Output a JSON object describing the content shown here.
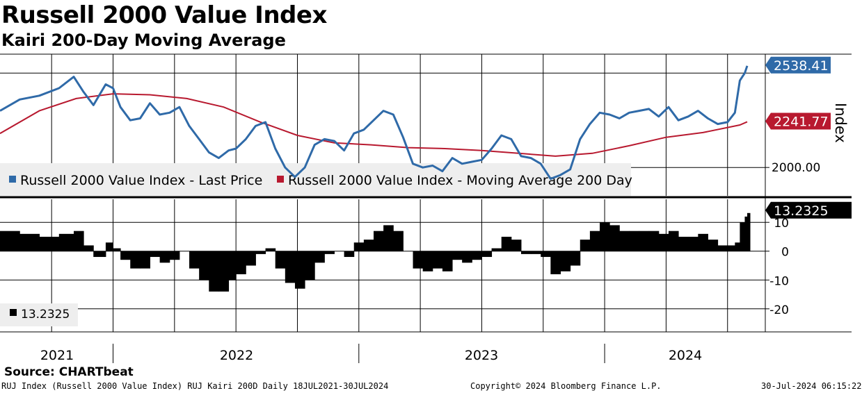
{
  "header": {
    "title": "Russell 2000 Value Index",
    "subtitle": "Kairi 200-Day Moving Average",
    "source": "Source: CHARTbeat"
  },
  "footer": {
    "left": "RUJ Index (Russell 2000 Value Index) RUJ Kairi 200D  Daily 18JUL2021-30JUL2024",
    "center": "Copyright© 2024 Bloomberg Finance L.P.",
    "right": "30-Jul-2024 06:15:22"
  },
  "colors": {
    "price": "#2f6aa8",
    "ma": "#b8192f",
    "kairi": "#000000"
  },
  "chart_data": [
    {
      "type": "line",
      "title": "Russell 2000 Value Index",
      "ylabel": "Index",
      "ylim": [
        1850,
        2600
      ],
      "y_ticks": [
        2000
      ],
      "y_tick_labels": [
        "2000.00"
      ],
      "xlim": [
        2021.54,
        2024.58
      ],
      "x_tick_labels": [
        "2021",
        "2022",
        "2023",
        "2024"
      ],
      "legend": [
        "Russell 2000 Value Index - Last Price",
        "Russell 2000 Value Index - Moving Average 200 Day"
      ],
      "series": [
        {
          "name": "Russell 2000 Value Index - Last Price",
          "last_label": "2538.41",
          "x": [
            2021.54,
            2021.62,
            2021.7,
            2021.78,
            2021.84,
            2021.88,
            2021.92,
            2021.97,
            2022.0,
            2022.03,
            2022.07,
            2022.11,
            2022.15,
            2022.19,
            2022.23,
            2022.27,
            2022.31,
            2022.35,
            2022.39,
            2022.43,
            2022.47,
            2022.5,
            2022.54,
            2022.58,
            2022.62,
            2022.66,
            2022.7,
            2022.74,
            2022.78,
            2022.82,
            2022.86,
            2022.9,
            2022.94,
            2022.98,
            2023.02,
            2023.06,
            2023.1,
            2023.14,
            2023.18,
            2023.22,
            2023.26,
            2023.3,
            2023.34,
            2023.38,
            2023.42,
            2023.46,
            2023.5,
            2023.54,
            2023.58,
            2023.62,
            2023.66,
            2023.7,
            2023.74,
            2023.78,
            2023.82,
            2023.86,
            2023.9,
            2023.94,
            2023.98,
            2024.02,
            2024.06,
            2024.1,
            2024.14,
            2024.18,
            2024.22,
            2024.26,
            2024.3,
            2024.34,
            2024.38,
            2024.42,
            2024.46,
            2024.5,
            2024.53,
            2024.55,
            2024.57,
            2024.58
          ],
          "y": [
            2300,
            2360,
            2380,
            2420,
            2480,
            2400,
            2330,
            2440,
            2420,
            2320,
            2250,
            2260,
            2340,
            2280,
            2290,
            2320,
            2220,
            2150,
            2080,
            2050,
            2090,
            2100,
            2150,
            2220,
            2240,
            2100,
            2000,
            1950,
            2000,
            2120,
            2150,
            2140,
            2090,
            2180,
            2200,
            2250,
            2300,
            2280,
            2160,
            2020,
            2000,
            2010,
            1980,
            2050,
            2020,
            2030,
            2040,
            2100,
            2170,
            2150,
            2060,
            2050,
            2020,
            1940,
            1960,
            1990,
            2150,
            2230,
            2290,
            2280,
            2260,
            2290,
            2300,
            2310,
            2270,
            2320,
            2250,
            2270,
            2300,
            2260,
            2230,
            2240,
            2290,
            2460,
            2500,
            2538.41
          ]
        },
        {
          "name": "Russell 2000 Value Index - Moving Average 200 Day",
          "last_label": "2241.77",
          "x": [
            2021.54,
            2021.7,
            2021.85,
            2022.0,
            2022.15,
            2022.3,
            2022.45,
            2022.6,
            2022.75,
            2022.9,
            2023.05,
            2023.2,
            2023.35,
            2023.5,
            2023.65,
            2023.8,
            2023.95,
            2024.1,
            2024.25,
            2024.4,
            2024.55,
            2024.58
          ],
          "y": [
            2180,
            2300,
            2365,
            2390,
            2385,
            2365,
            2320,
            2240,
            2170,
            2130,
            2120,
            2105,
            2100,
            2090,
            2075,
            2060,
            2075,
            2115,
            2160,
            2185,
            2225,
            2241.77
          ]
        }
      ]
    },
    {
      "type": "bar",
      "title": "RUJ Kairi 200D",
      "ylim": [
        -28,
        18
      ],
      "y_ticks": [
        10,
        0,
        -10,
        -20
      ],
      "y_tick_labels": [
        "10",
        "0",
        "-10",
        "-20"
      ],
      "legend": [
        "13.2325"
      ],
      "last_label": "13.2325",
      "series": [
        {
          "name": "Kairi 200D",
          "x": [
            2021.54,
            2021.62,
            2021.7,
            2021.78,
            2021.84,
            2021.88,
            2021.92,
            2021.97,
            2022.0,
            2022.03,
            2022.07,
            2022.11,
            2022.15,
            2022.19,
            2022.23,
            2022.27,
            2022.31,
            2022.35,
            2022.39,
            2022.43,
            2022.47,
            2022.5,
            2022.54,
            2022.58,
            2022.62,
            2022.66,
            2022.7,
            2022.74,
            2022.78,
            2022.82,
            2022.86,
            2022.9,
            2022.94,
            2022.98,
            2023.02,
            2023.06,
            2023.1,
            2023.14,
            2023.18,
            2023.22,
            2023.26,
            2023.3,
            2023.34,
            2023.38,
            2023.42,
            2023.46,
            2023.5,
            2023.54,
            2023.58,
            2023.62,
            2023.66,
            2023.7,
            2023.74,
            2023.78,
            2023.82,
            2023.86,
            2023.9,
            2023.94,
            2023.98,
            2024.02,
            2024.06,
            2024.1,
            2024.14,
            2024.18,
            2024.22,
            2024.26,
            2024.3,
            2024.34,
            2024.38,
            2024.42,
            2024.46,
            2024.5,
            2024.53,
            2024.55,
            2024.57,
            2024.58
          ],
          "values": [
            7,
            6,
            5,
            6,
            7,
            2,
            -2,
            3,
            1,
            -3,
            -6,
            -6,
            -2,
            -4,
            -3,
            0,
            -6,
            -10,
            -14,
            -14,
            -10,
            -8,
            -5,
            -1,
            1,
            -6,
            -11,
            -13,
            -10,
            -4,
            -1,
            0,
            -2,
            3,
            4,
            7,
            9,
            7,
            0,
            -6,
            -7,
            -6,
            -7,
            -3,
            -4,
            -3,
            -2,
            1,
            5,
            4,
            -1,
            -1,
            -2,
            -8,
            -7,
            -5,
            4,
            7,
            10,
            9,
            7,
            7,
            7,
            7,
            6,
            7,
            5,
            5,
            6,
            4,
            2,
            2,
            3,
            10,
            12,
            13.2325
          ]
        }
      ]
    }
  ]
}
